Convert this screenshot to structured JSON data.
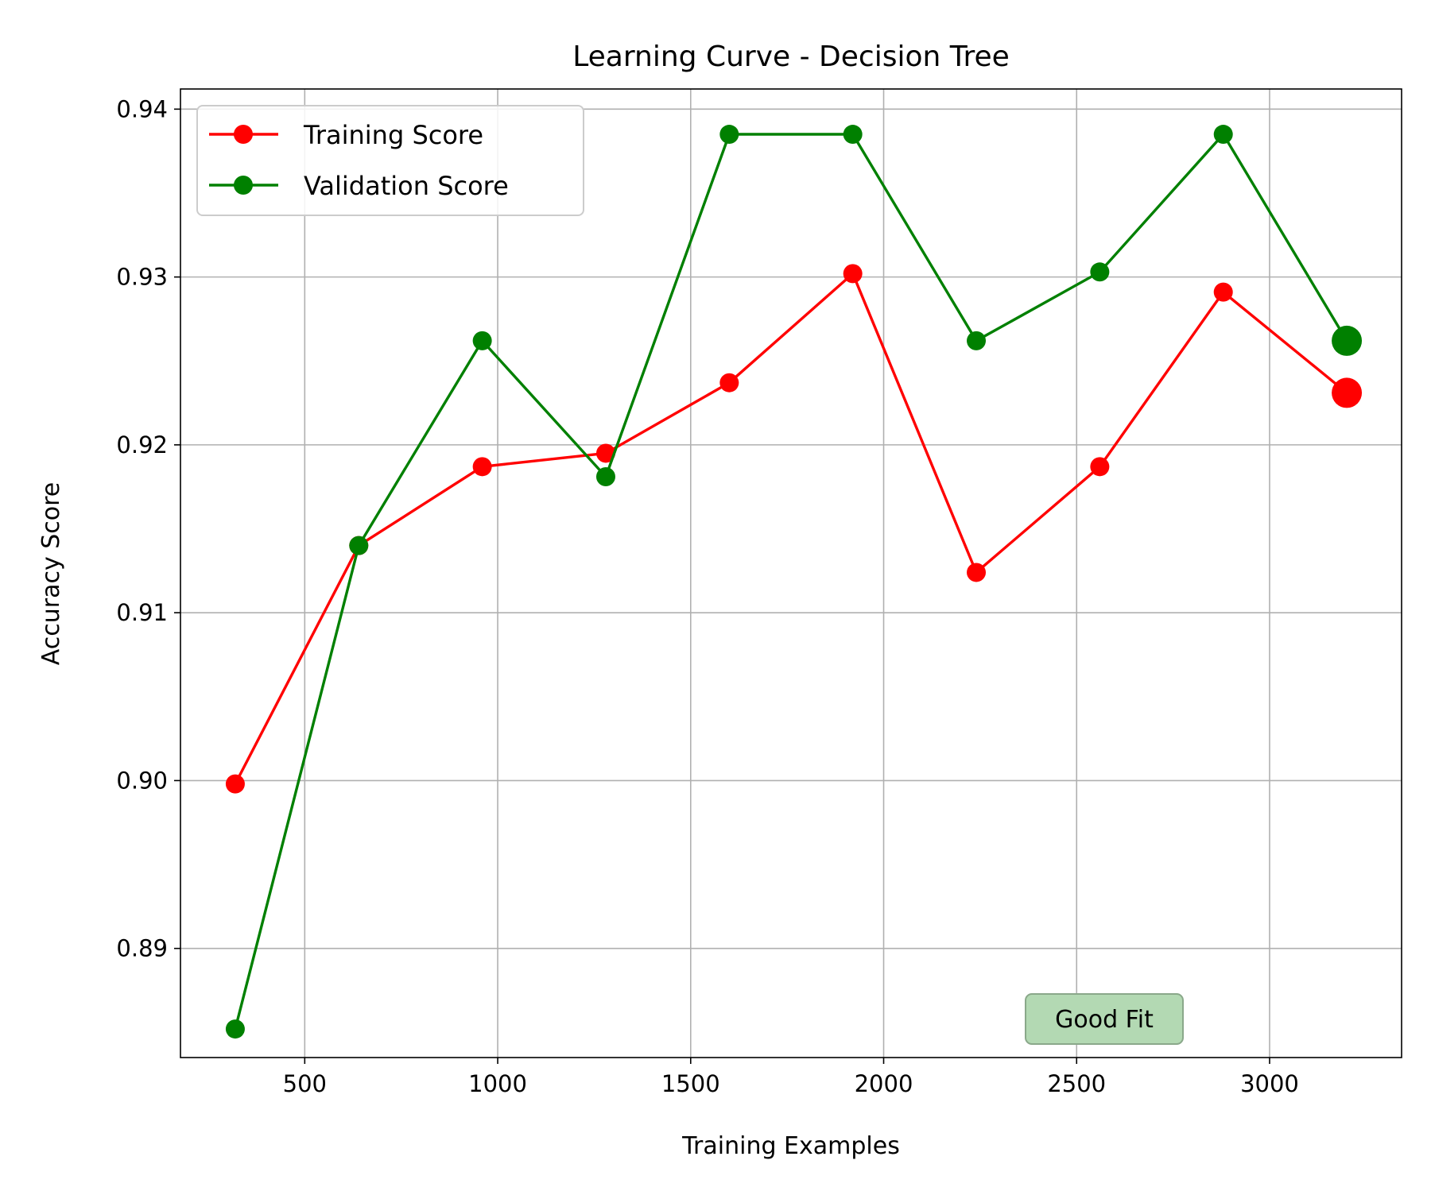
{
  "chart_data": {
    "type": "line",
    "title": "Learning Curve - Decision Tree",
    "xlabel": "Training Examples",
    "ylabel": "Accuracy Score",
    "xlim": [
      178,
      3342
    ],
    "ylim": [
      0.8835,
      0.9412
    ],
    "xticks": [
      500,
      1000,
      1500,
      2000,
      2500,
      3000
    ],
    "xtick_labels": [
      "500",
      "1000",
      "1500",
      "2000",
      "2500",
      "3000"
    ],
    "yticks": [
      0.89,
      0.9,
      0.91,
      0.92,
      0.93,
      0.94
    ],
    "ytick_labels": [
      "0.89",
      "0.90",
      "0.91",
      "0.92",
      "0.93",
      "0.94"
    ],
    "grid": true,
    "legend_position": "upper-left",
    "x": [
      320,
      640,
      960,
      1280,
      1600,
      1920,
      2240,
      2560,
      2880,
      3200
    ],
    "series": [
      {
        "name": "Training Score",
        "color": "#ff0000",
        "values": [
          0.8998,
          0.914,
          0.9187,
          0.9195,
          0.9237,
          0.9302,
          0.9124,
          0.9187,
          0.9291,
          0.9231
        ],
        "highlight_last": true
      },
      {
        "name": "Validation Score",
        "color": "#008000",
        "values": [
          0.8852,
          0.914,
          0.9262,
          0.9181,
          0.9385,
          0.9385,
          0.9262,
          0.9303,
          0.9385,
          0.9262
        ],
        "highlight_last": true
      }
    ],
    "annotation": {
      "text": "Good Fit",
      "x": 2740,
      "y": 0.8847,
      "background": "#b3d9b3",
      "border": "#8aa88a"
    }
  }
}
